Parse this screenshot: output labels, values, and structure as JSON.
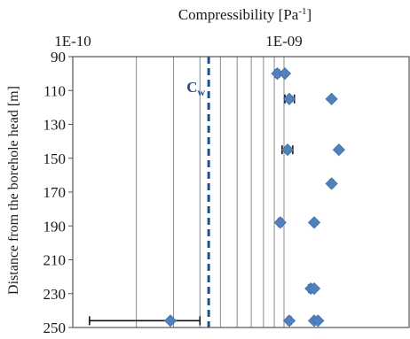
{
  "chart_data": {
    "type": "scatter",
    "title": "Compressibility [Pa",
    "title_superscript": "-1",
    "title_suffix": "]",
    "ylabel": "Distance from the borehole head [m]",
    "x_scale": "log",
    "xlim": [
      1e-10,
      2e-09
    ],
    "ylim": [
      90,
      250
    ],
    "y_inverted": true,
    "x_ticks": [
      {
        "value": 1e-10,
        "label": "1E-10"
      },
      {
        "value": 1e-09,
        "label": "1E-09"
      }
    ],
    "y_ticks": [
      90,
      110,
      130,
      150,
      170,
      190,
      210,
      230,
      250
    ],
    "x_axis_position": "top",
    "grid": "vertical",
    "marker_color": "#4f81bd",
    "reference_line": {
      "x": 4.4e-10,
      "label": "C",
      "label_sub": "w",
      "color": "#1f4e8c",
      "style": "dashed"
    },
    "points": [
      {
        "x": 9.3e-10,
        "y": 100,
        "xerr": [
          9.1e-10,
          9.5e-10
        ]
      },
      {
        "x": 1.01e-09,
        "y": 100,
        "xerr": null
      },
      {
        "x": 1.06e-09,
        "y": 115,
        "xerr": [
          1.01e-09,
          1.12e-09
        ]
      },
      {
        "x": 1.68e-09,
        "y": 115,
        "xerr": [
          1.66e-09,
          1.7e-09
        ]
      },
      {
        "x": 1.04e-09,
        "y": 145,
        "xerr": [
          9.8e-10,
          1.1e-09
        ]
      },
      {
        "x": 1.82e-09,
        "y": 145,
        "xerr": [
          1.8e-09,
          1.84e-09
        ]
      },
      {
        "x": 1.68e-09,
        "y": 165,
        "xerr": [
          1.65e-09,
          1.71e-09
        ]
      },
      {
        "x": 9.6e-10,
        "y": 188,
        "xerr": [
          9.4e-10,
          9.8e-10
        ]
      },
      {
        "x": 1.39e-09,
        "y": 188,
        "xerr": null
      },
      {
        "x": 1.34e-09,
        "y": 227,
        "xerr": [
          1.31e-09,
          1.37e-09
        ]
      },
      {
        "x": 1.39e-09,
        "y": 227,
        "xerr": null
      },
      {
        "x": 2.9e-10,
        "y": 246,
        "xerr": [
          1.2e-10,
          4e-10
        ]
      },
      {
        "x": 1.06e-09,
        "y": 246,
        "xerr": [
          1.04e-09,
          1.08e-09
        ]
      },
      {
        "x": 1.39e-09,
        "y": 246,
        "xerr": null
      },
      {
        "x": 1.45e-09,
        "y": 246,
        "xerr": null
      }
    ]
  }
}
